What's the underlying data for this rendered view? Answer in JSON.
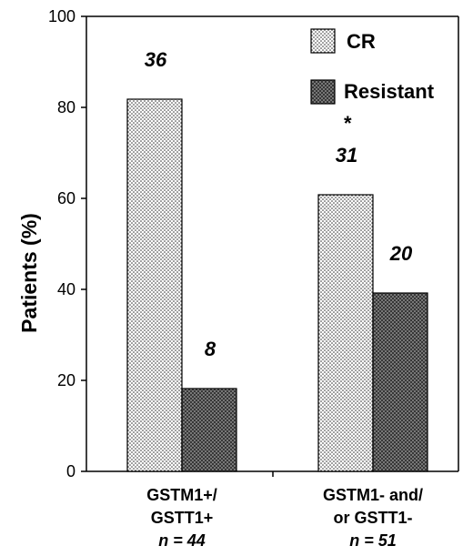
{
  "chart_data": {
    "type": "bar",
    "ylabel": "Patients (%)",
    "ylim": [
      0,
      100
    ],
    "yticks": [
      0,
      20,
      40,
      60,
      80,
      100
    ],
    "grid": false,
    "legend_position": "top-right",
    "categories": [
      {
        "lines": [
          "GSTM1+/",
          "GSTT1+"
        ],
        "n_label": "n = 44"
      },
      {
        "lines": [
          "GSTM1- and/",
          "or GSTT1-"
        ],
        "n_label": "n = 51"
      }
    ],
    "series": [
      {
        "name": "CR",
        "values": [
          81.8,
          60.8
        ],
        "data_labels": [
          "36",
          "31"
        ],
        "pattern": "dots"
      },
      {
        "name": "Resistant",
        "values": [
          18.2,
          39.2
        ],
        "data_labels": [
          "8",
          "20"
        ],
        "pattern": "cross"
      }
    ],
    "annotation": "*"
  }
}
